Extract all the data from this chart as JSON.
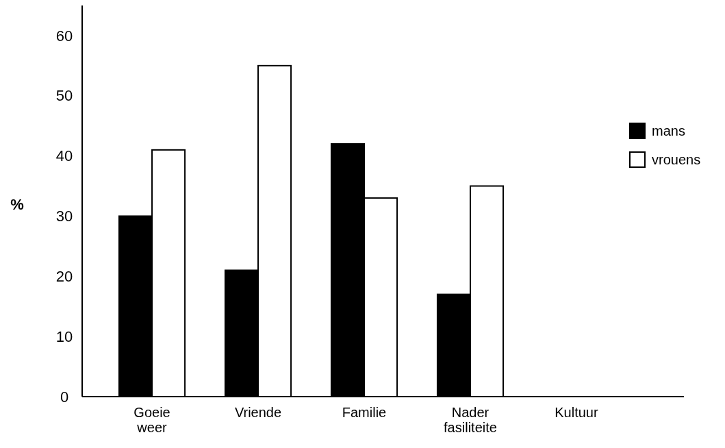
{
  "chart_data": {
    "type": "bar",
    "ylabel": "%",
    "categories": [
      "Goeie weer",
      "Vriende",
      "Familie",
      "Nader fasiliteite",
      "Kultuur"
    ],
    "series": [
      {
        "name": "mans",
        "color": "#000000",
        "values": [
          30,
          21,
          42,
          17,
          0
        ]
      },
      {
        "name": "vrouens",
        "color": "#ffffff",
        "values": [
          41,
          55,
          33,
          35,
          0
        ]
      }
    ],
    "ylim": [
      0,
      65
    ],
    "yticks": [
      0,
      10,
      20,
      30,
      40,
      50,
      60
    ],
    "grid": false,
    "legend": "right"
  }
}
